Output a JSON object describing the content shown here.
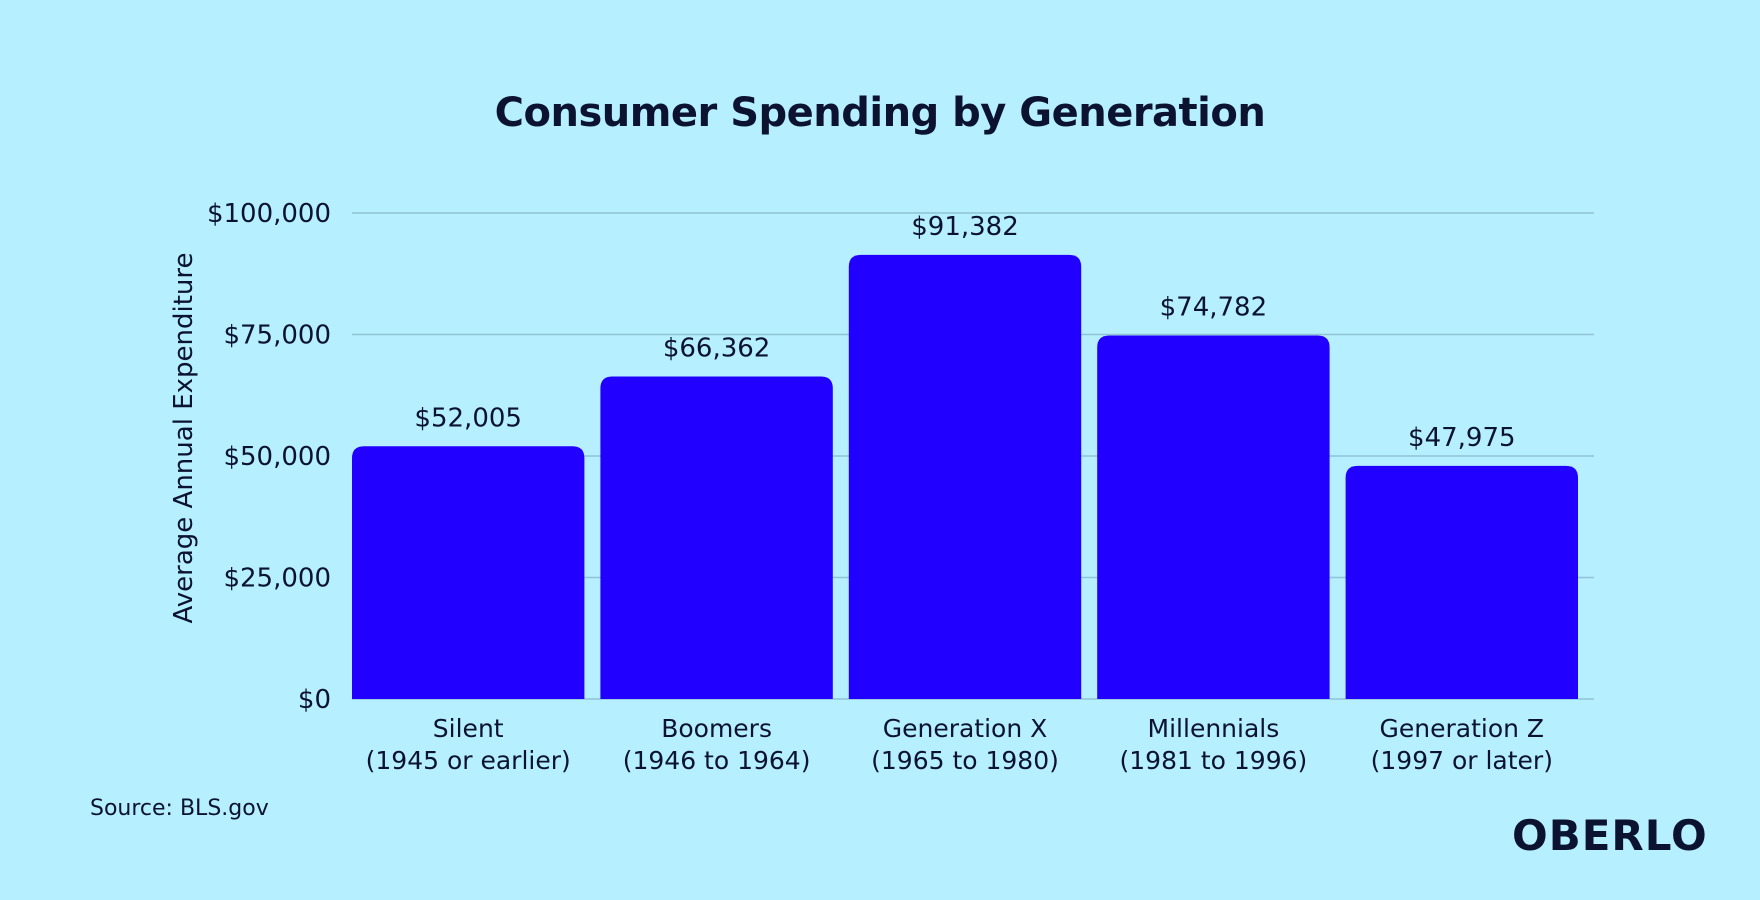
{
  "chart_data": {
    "type": "bar",
    "title": "Consumer Spending by Generation",
    "ylabel": "Average Annual Expenditure",
    "xlabel": "",
    "ylim": [
      0,
      100000
    ],
    "yticks": [
      0,
      25000,
      50000,
      75000,
      100000
    ],
    "ytick_labels": [
      "$0",
      "$25,000",
      "$50,000",
      "$75,000",
      "$100,000"
    ],
    "grid": true,
    "categories": [
      {
        "line1": "Silent",
        "line2": "(1945 or earlier)"
      },
      {
        "line1": "Boomers",
        "line2": "(1946 to 1964)"
      },
      {
        "line1": "Generation X",
        "line2": "(1965 to 1980)"
      },
      {
        "line1": "Millennials",
        "line2": "(1981 to 1996)"
      },
      {
        "line1": "Generation Z",
        "line2": "(1997 or later)"
      }
    ],
    "values": [
      52005,
      66362,
      91382,
      74782,
      47975
    ],
    "value_labels": [
      "$52,005",
      "$66,362",
      "$91,382",
      "$74,782",
      "$47,975"
    ],
    "bar_color": "#2200ff",
    "grid_color": "#8fc3d6"
  },
  "footer": {
    "source": "Source: BLS.gov",
    "logo_text": "OBERLO"
  },
  "colors": {
    "background": "#b6efff",
    "text": "#0b1330"
  }
}
